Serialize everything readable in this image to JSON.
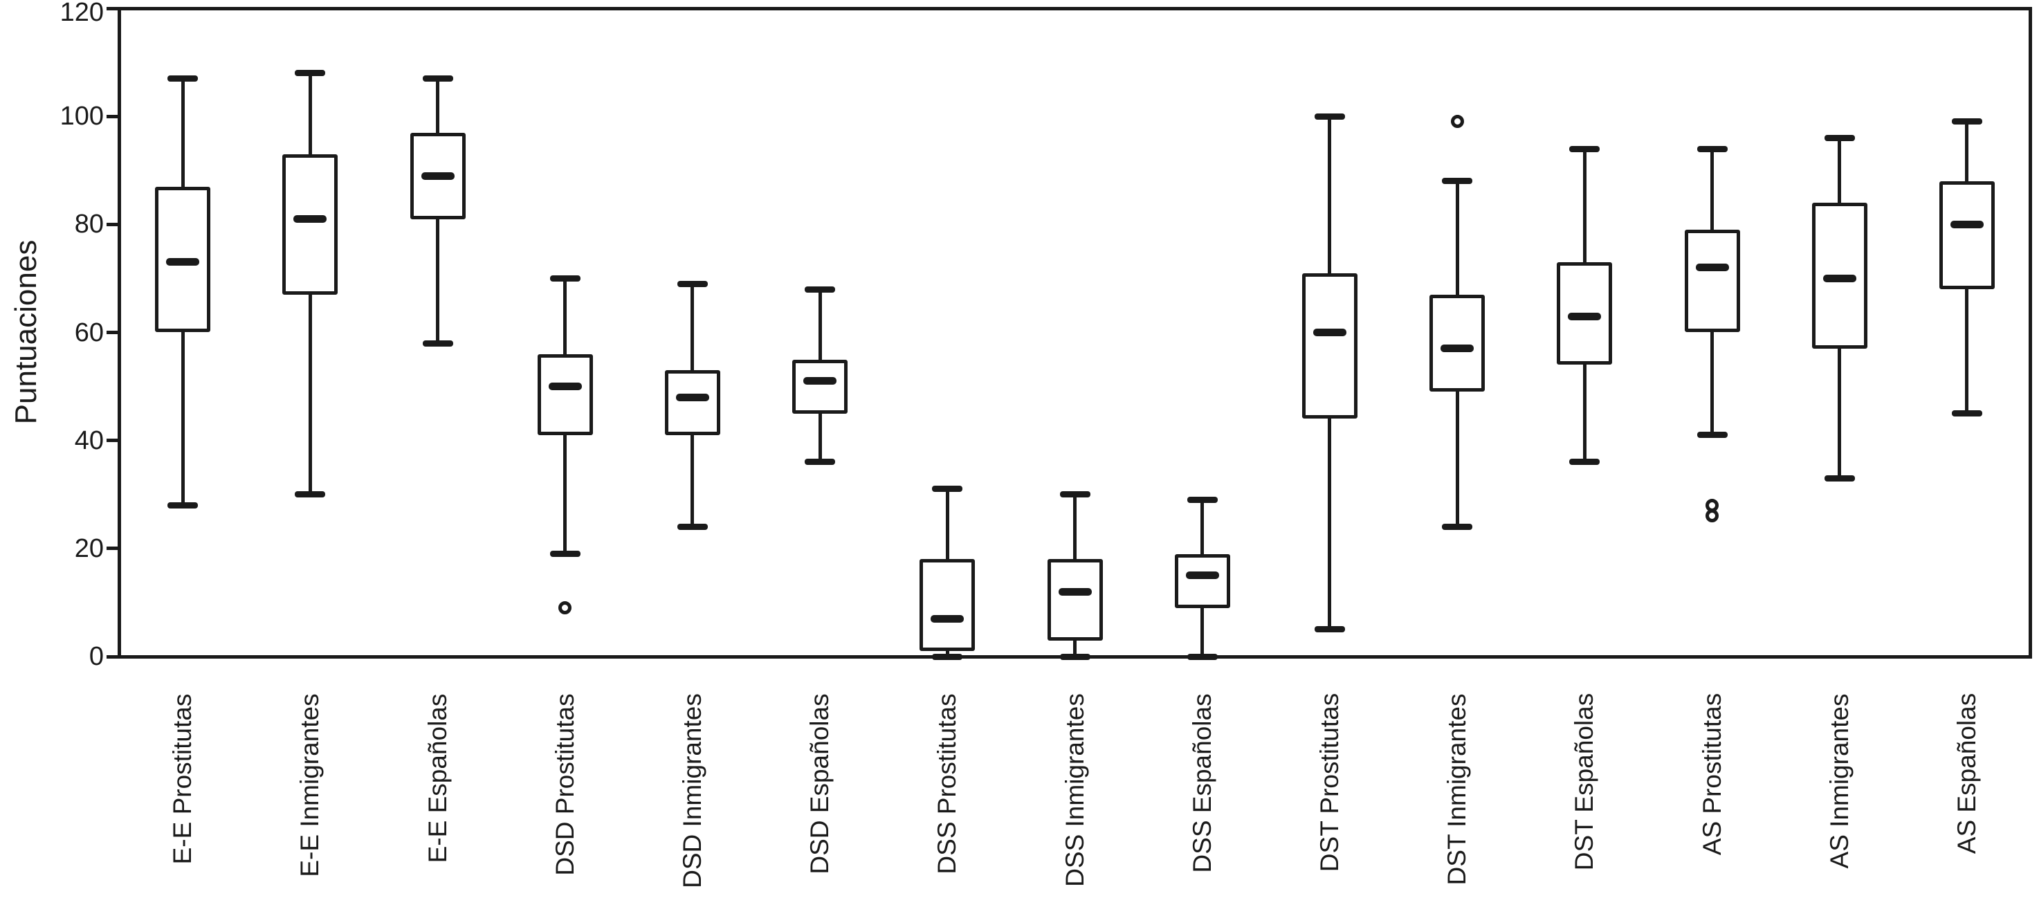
{
  "figure": {
    "background": "#ffffff",
    "stroke_color": "#1a1a1a"
  },
  "chart_data": {
    "type": "boxplot",
    "title": "",
    "xlabel": "",
    "ylabel": "Puntuaciones",
    "ylim": [
      0,
      120
    ],
    "yticks": [
      0,
      20,
      40,
      60,
      80,
      100,
      120
    ],
    "grid": false,
    "frame": true,
    "legend_position": "none",
    "categories": [
      "E-E Prostitutas",
      "E-E Inmigrantes",
      "E-E Españolas",
      "DSD Prostitutas",
      "DSD Inmigrantes",
      "DSD Españolas",
      "DSS Prostitutas",
      "DSS Inmigrantes",
      "DSS Españolas",
      "DST Prostitutas",
      "DST Inmigrantes",
      "DST Españolas",
      "AS Prostitutas",
      "AS Inmigrantes",
      "AS Españolas"
    ],
    "series": [
      {
        "name": "E-E Prostitutas",
        "min": 28,
        "q1": 60,
        "median": 73,
        "q3": 87,
        "max": 107,
        "outliers": []
      },
      {
        "name": "E-E Inmigrantes",
        "min": 30,
        "q1": 67,
        "median": 81,
        "q3": 93,
        "max": 108,
        "outliers": []
      },
      {
        "name": "E-E Españolas",
        "min": 58,
        "q1": 81,
        "median": 89,
        "q3": 97,
        "max": 107,
        "outliers": []
      },
      {
        "name": "DSD Prostitutas",
        "min": 19,
        "q1": 41,
        "median": 50,
        "q3": 56,
        "max": 70,
        "outliers": [
          9
        ]
      },
      {
        "name": "DSD Inmigrantes",
        "min": 24,
        "q1": 41,
        "median": 48,
        "q3": 53,
        "max": 69,
        "outliers": []
      },
      {
        "name": "DSD Españolas",
        "min": 36,
        "q1": 45,
        "median": 51,
        "q3": 55,
        "max": 68,
        "outliers": []
      },
      {
        "name": "DSS Prostitutas",
        "min": 0,
        "q1": 1,
        "median": 7,
        "q3": 18,
        "max": 31,
        "outliers": []
      },
      {
        "name": "DSS Inmigrantes",
        "min": 0,
        "q1": 3,
        "median": 12,
        "q3": 18,
        "max": 30,
        "outliers": []
      },
      {
        "name": "DSS Españolas",
        "min": 0,
        "q1": 9,
        "median": 15,
        "q3": 19,
        "max": 29,
        "outliers": []
      },
      {
        "name": "DST Prostitutas",
        "min": 5,
        "q1": 44,
        "median": 60,
        "q3": 71,
        "max": 100,
        "outliers": []
      },
      {
        "name": "DST Inmigrantes",
        "min": 24,
        "q1": 49,
        "median": 57,
        "q3": 67,
        "max": 88,
        "outliers": [
          99
        ]
      },
      {
        "name": "DST Españolas",
        "min": 36,
        "q1": 54,
        "median": 63,
        "q3": 73,
        "max": 94,
        "outliers": []
      },
      {
        "name": "AS Prostitutas",
        "min": 41,
        "q1": 60,
        "median": 72,
        "q3": 79,
        "max": 94,
        "outliers": [
          28,
          26
        ]
      },
      {
        "name": "AS Inmigrantes",
        "min": 33,
        "q1": 57,
        "median": 70,
        "q3": 84,
        "max": 96,
        "outliers": []
      },
      {
        "name": "AS Españolas",
        "min": 45,
        "q1": 68,
        "median": 80,
        "q3": 88,
        "max": 99,
        "outliers": []
      }
    ]
  }
}
